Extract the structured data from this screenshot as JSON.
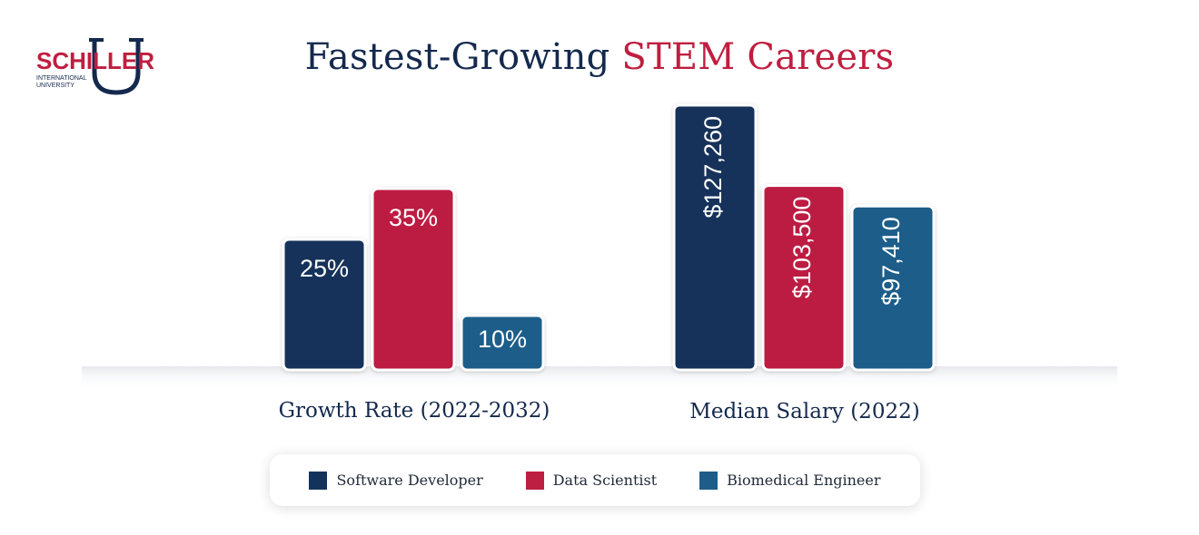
{
  "logo": {
    "top": "SCHILLER",
    "sub1": "INTERNATIONAL",
    "sub2": "UNIVERSITY",
    "letter": "U"
  },
  "title": {
    "part1": "Fastest-Growing",
    "part2": "STEM Careers"
  },
  "colors": {
    "software_developer": "#14335a",
    "data_scientist": "#bd1f42",
    "biomedical_engineer": "#1e5d8a",
    "title_dark": "#14294d",
    "title_red": "#bf1e3f"
  },
  "chart_data": [
    {
      "type": "bar",
      "title": "",
      "xlabel": "Growth Rate (2022-2032)",
      "ylabel": "",
      "categories": [
        "Software Developer",
        "Data Scientist",
        "Biomedical Engineer"
      ],
      "values": [
        25,
        35,
        10
      ],
      "data_labels": [
        "25%",
        "35%",
        "10%"
      ],
      "label_orientation": "horizontal",
      "ylim": [
        0,
        45
      ]
    },
    {
      "type": "bar",
      "title": "",
      "xlabel": "Median Salary (2022)",
      "ylabel": "",
      "categories": [
        "Software Developer",
        "Data Scientist",
        "Biomedical Engineer"
      ],
      "values": [
        127260,
        103500,
        97410
      ],
      "data_labels": [
        "$127,260",
        "$103,500",
        "$97,410"
      ],
      "label_orientation": "vertical",
      "ylim": [
        50000,
        128000
      ]
    }
  ],
  "legend": [
    {
      "label": "Software Developer",
      "color": "#14335a"
    },
    {
      "label": "Data Scientist",
      "color": "#bd1f42"
    },
    {
      "label": "Biomedical Engineer",
      "color": "#1e5d8a"
    }
  ]
}
